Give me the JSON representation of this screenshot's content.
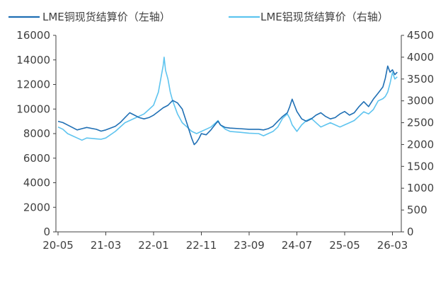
{
  "chart_data": {
    "type": "line",
    "x_labels": [
      "20-05",
      "21-03",
      "22-01",
      "22-11",
      "23-09",
      "24-07",
      "25-05",
      "26-03"
    ],
    "left_axis": {
      "ylim": [
        0,
        16000
      ],
      "ticks": [
        "0",
        "2000",
        "4000",
        "6000",
        "8000",
        "10000",
        "12000",
        "14000",
        "16000"
      ]
    },
    "right_axis": {
      "ylim": [
        0,
        4500
      ],
      "ticks": [
        "0",
        "500",
        "1000",
        "1500",
        "2000",
        "2500",
        "3000",
        "3500",
        "4000",
        "4500"
      ]
    },
    "grid": false,
    "legend_position": "top",
    "series": [
      {
        "name": "LME铜现货结算价（左轴）",
        "axis": "left",
        "color": "#1f6fb4",
        "points": [
          [
            0,
            9000
          ],
          [
            0.1,
            8900
          ],
          [
            0.2,
            8700
          ],
          [
            0.3,
            8500
          ],
          [
            0.4,
            8300
          ],
          [
            0.5,
            8400
          ],
          [
            0.6,
            8500
          ],
          [
            0.8,
            8350
          ],
          [
            0.9,
            8200
          ],
          [
            1.0,
            8300
          ],
          [
            1.2,
            8600
          ],
          [
            1.3,
            8900
          ],
          [
            1.4,
            9300
          ],
          [
            1.5,
            9700
          ],
          [
            1.6,
            9500
          ],
          [
            1.7,
            9300
          ],
          [
            1.8,
            9200
          ],
          [
            1.9,
            9300
          ],
          [
            2.0,
            9500
          ],
          [
            2.1,
            9800
          ],
          [
            2.2,
            10100
          ],
          [
            2.3,
            10300
          ],
          [
            2.4,
            10700
          ],
          [
            2.5,
            10500
          ],
          [
            2.6,
            10000
          ],
          [
            2.65,
            9400
          ],
          [
            2.7,
            8800
          ],
          [
            2.75,
            8200
          ],
          [
            2.8,
            7600
          ],
          [
            2.85,
            7100
          ],
          [
            2.9,
            7300
          ],
          [
            2.95,
            7600
          ],
          [
            3.0,
            8000
          ],
          [
            3.1,
            7900
          ],
          [
            3.2,
            8300
          ],
          [
            3.3,
            8800
          ],
          [
            3.35,
            9000
          ],
          [
            3.4,
            8700
          ],
          [
            3.5,
            8500
          ],
          [
            3.6,
            8450
          ],
          [
            3.8,
            8400
          ],
          [
            4.0,
            8350
          ],
          [
            4.2,
            8350
          ],
          [
            4.3,
            8300
          ],
          [
            4.4,
            8400
          ],
          [
            4.5,
            8600
          ],
          [
            4.6,
            9000
          ],
          [
            4.7,
            9400
          ],
          [
            4.8,
            9700
          ],
          [
            4.85,
            10200
          ],
          [
            4.9,
            10800
          ],
          [
            4.95,
            10300
          ],
          [
            5.0,
            9800
          ],
          [
            5.1,
            9200
          ],
          [
            5.2,
            9000
          ],
          [
            5.3,
            9200
          ],
          [
            5.4,
            9500
          ],
          [
            5.5,
            9700
          ],
          [
            5.6,
            9400
          ],
          [
            5.7,
            9200
          ],
          [
            5.8,
            9300
          ],
          [
            5.9,
            9600
          ],
          [
            6.0,
            9800
          ],
          [
            6.1,
            9500
          ],
          [
            6.2,
            9700
          ],
          [
            6.3,
            10200
          ],
          [
            6.4,
            10600
          ],
          [
            6.5,
            10200
          ],
          [
            6.6,
            10800
          ],
          [
            6.7,
            11300
          ],
          [
            6.8,
            11800
          ],
          [
            6.85,
            12500
          ],
          [
            6.9,
            13500
          ],
          [
            6.95,
            13000
          ],
          [
            7.0,
            13200
          ],
          [
            7.05,
            12800
          ],
          [
            7.1,
            13000
          ]
        ]
      },
      {
        "name": "LME铝现货结算价（右轴）",
        "axis": "right",
        "color": "#5ec4ef",
        "points": [
          [
            0,
            2400
          ],
          [
            0.1,
            2350
          ],
          [
            0.2,
            2250
          ],
          [
            0.3,
            2200
          ],
          [
            0.4,
            2150
          ],
          [
            0.5,
            2100
          ],
          [
            0.6,
            2150
          ],
          [
            0.8,
            2130
          ],
          [
            0.9,
            2120
          ],
          [
            1.0,
            2150
          ],
          [
            1.2,
            2300
          ],
          [
            1.4,
            2500
          ],
          [
            1.5,
            2550
          ],
          [
            1.6,
            2600
          ],
          [
            1.7,
            2650
          ],
          [
            1.8,
            2700
          ],
          [
            1.9,
            2800
          ],
          [
            2.0,
            2900
          ],
          [
            2.1,
            3200
          ],
          [
            2.15,
            3500
          ],
          [
            2.2,
            3800
          ],
          [
            2.22,
            4000
          ],
          [
            2.25,
            3700
          ],
          [
            2.3,
            3500
          ],
          [
            2.35,
            3200
          ],
          [
            2.4,
            3000
          ],
          [
            2.5,
            2700
          ],
          [
            2.6,
            2500
          ],
          [
            2.7,
            2400
          ],
          [
            2.8,
            2300
          ],
          [
            2.9,
            2250
          ],
          [
            3.0,
            2300
          ],
          [
            3.1,
            2350
          ],
          [
            3.2,
            2400
          ],
          [
            3.3,
            2500
          ],
          [
            3.35,
            2550
          ],
          [
            3.4,
            2450
          ],
          [
            3.5,
            2350
          ],
          [
            3.6,
            2300
          ],
          [
            3.8,
            2280
          ],
          [
            4.0,
            2260
          ],
          [
            4.2,
            2250
          ],
          [
            4.3,
            2200
          ],
          [
            4.4,
            2250
          ],
          [
            4.5,
            2300
          ],
          [
            4.6,
            2400
          ],
          [
            4.7,
            2600
          ],
          [
            4.8,
            2700
          ],
          [
            4.85,
            2600
          ],
          [
            4.9,
            2450
          ],
          [
            5.0,
            2300
          ],
          [
            5.1,
            2450
          ],
          [
            5.2,
            2550
          ],
          [
            5.3,
            2600
          ],
          [
            5.4,
            2500
          ],
          [
            5.5,
            2400
          ],
          [
            5.6,
            2450
          ],
          [
            5.7,
            2500
          ],
          [
            5.8,
            2450
          ],
          [
            5.9,
            2400
          ],
          [
            6.0,
            2450
          ],
          [
            6.1,
            2500
          ],
          [
            6.2,
            2550
          ],
          [
            6.3,
            2650
          ],
          [
            6.4,
            2750
          ],
          [
            6.5,
            2700
          ],
          [
            6.6,
            2800
          ],
          [
            6.7,
            3000
          ],
          [
            6.8,
            3050
          ],
          [
            6.85,
            3100
          ],
          [
            6.9,
            3200
          ],
          [
            6.95,
            3400
          ],
          [
            7.0,
            3650
          ],
          [
            7.05,
            3500
          ],
          [
            7.1,
            3550
          ]
        ]
      }
    ]
  }
}
